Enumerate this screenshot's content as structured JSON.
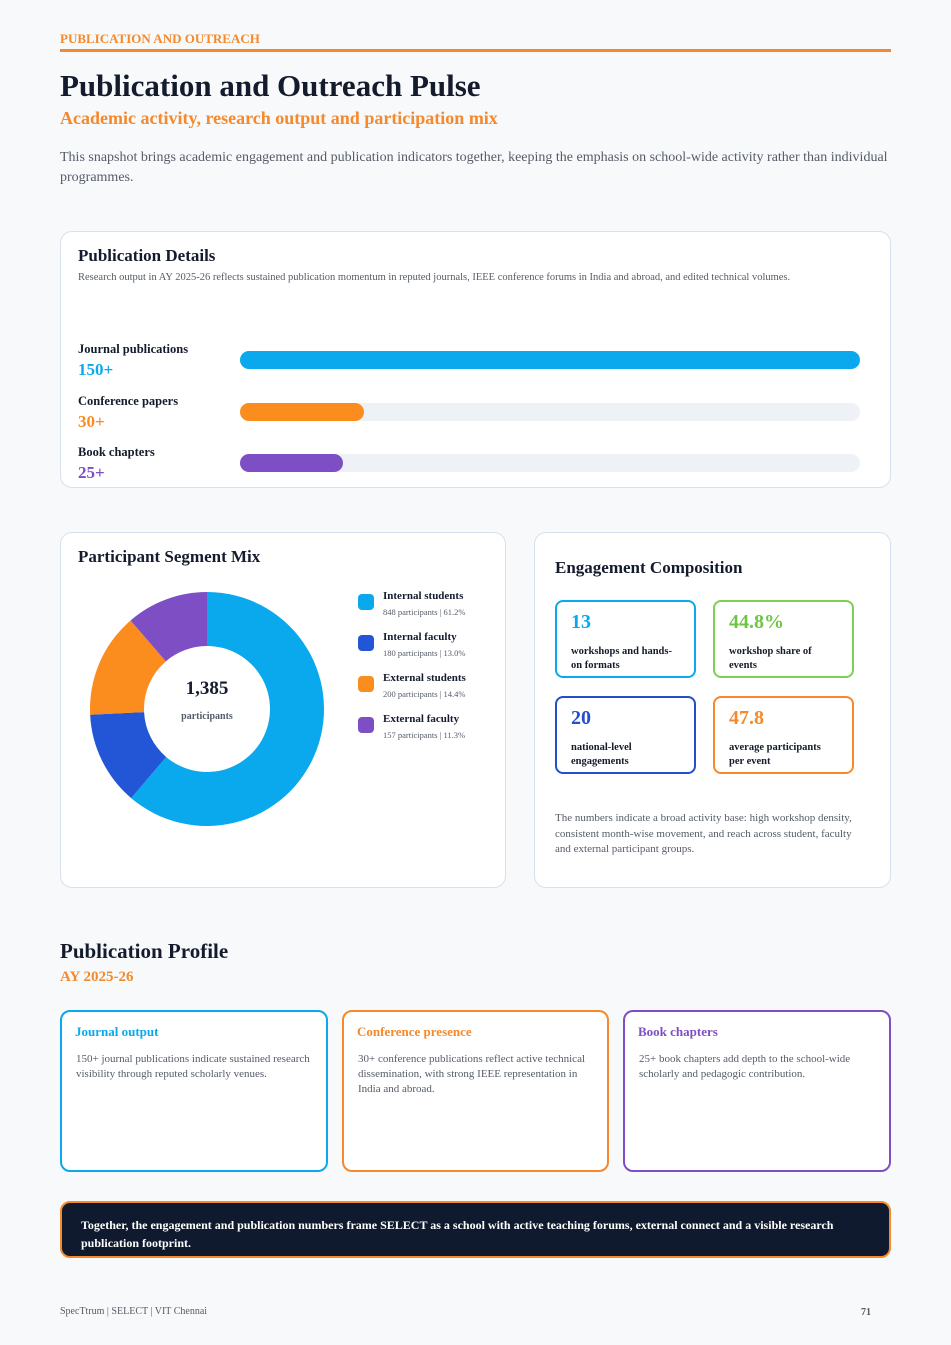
{
  "header": {
    "kicker": "PUBLICATION AND OUTREACH",
    "title": "Publication and Outreach Pulse",
    "subtitle": "Academic activity, research output and participation mix",
    "intro": "This snapshot brings academic engagement and publication indicators together, keeping the emphasis on school-wide activity rather than individual programmes."
  },
  "chart_data": [
    {
      "type": "bar",
      "title": "Publication Details",
      "subtitle": "Research output in AY 2025-26 reflects sustained publication momentum in reputed journals, IEEE conference forums in India and abroad, and edited technical volumes.",
      "categories": [
        "Journal publications",
        "Conference papers",
        "Book chapters"
      ],
      "values": [
        150,
        30,
        25
      ],
      "value_labels": [
        "150+",
        "30+",
        "25+"
      ],
      "colors": [
        "#0aa8ec",
        "#fb8c1e",
        "#7e4fc4"
      ],
      "xlim": [
        0,
        150
      ]
    },
    {
      "type": "pie",
      "title": "Participant Segment Mix",
      "categories": [
        "Internal students",
        "Internal faculty",
        "External students",
        "External faculty"
      ],
      "values": [
        848,
        180,
        200,
        157
      ],
      "value_labels": [
        "848 participants | 61.2%",
        "180 participants | 13.0%",
        "200 participants | 14.4%",
        "157 participants | 11.3%"
      ],
      "colors": [
        "#0aa8ec",
        "#2356d6",
        "#fb8c1e",
        "#7e4fc4"
      ],
      "total": {
        "value": 1385,
        "label": "1,385"
      },
      "total_label": "participants"
    }
  ],
  "engagement": {
    "title": "Engagement Composition",
    "stats": [
      {
        "value": "13",
        "label": "workshops and hands-on formats"
      },
      {
        "value": "44.8%",
        "label": "workshop share of events"
      },
      {
        "value": "20",
        "label": "national-level engagements"
      },
      {
        "value": "47.8",
        "label": "average participants per event"
      }
    ],
    "note": "The numbers indicate a broad activity base: high workshop density, consistent month-wise movement, and reach across student, faculty and external participant groups."
  },
  "profile": {
    "title": "Publication Profile",
    "subtitle": "AY 2025-26",
    "cards": [
      {
        "title": "Journal output",
        "text": "150+ journal publications indicate sustained research visibility through reputed scholarly venues."
      },
      {
        "title": "Conference presence",
        "text": "30+ conference publications reflect active technical dissemination, with strong IEEE representation in India and abroad."
      },
      {
        "title": "Book chapters",
        "text": "25+ book chapters add depth to the school-wide scholarly and pedagogic contribution."
      }
    ]
  },
  "banner": "Together, the engagement and publication numbers frame SELECT as a school with active teaching forums, external connect and a visible research publication footprint.",
  "footer": {
    "left": "SpecTtrum | SELECT | VIT Chennai",
    "page": "71"
  }
}
